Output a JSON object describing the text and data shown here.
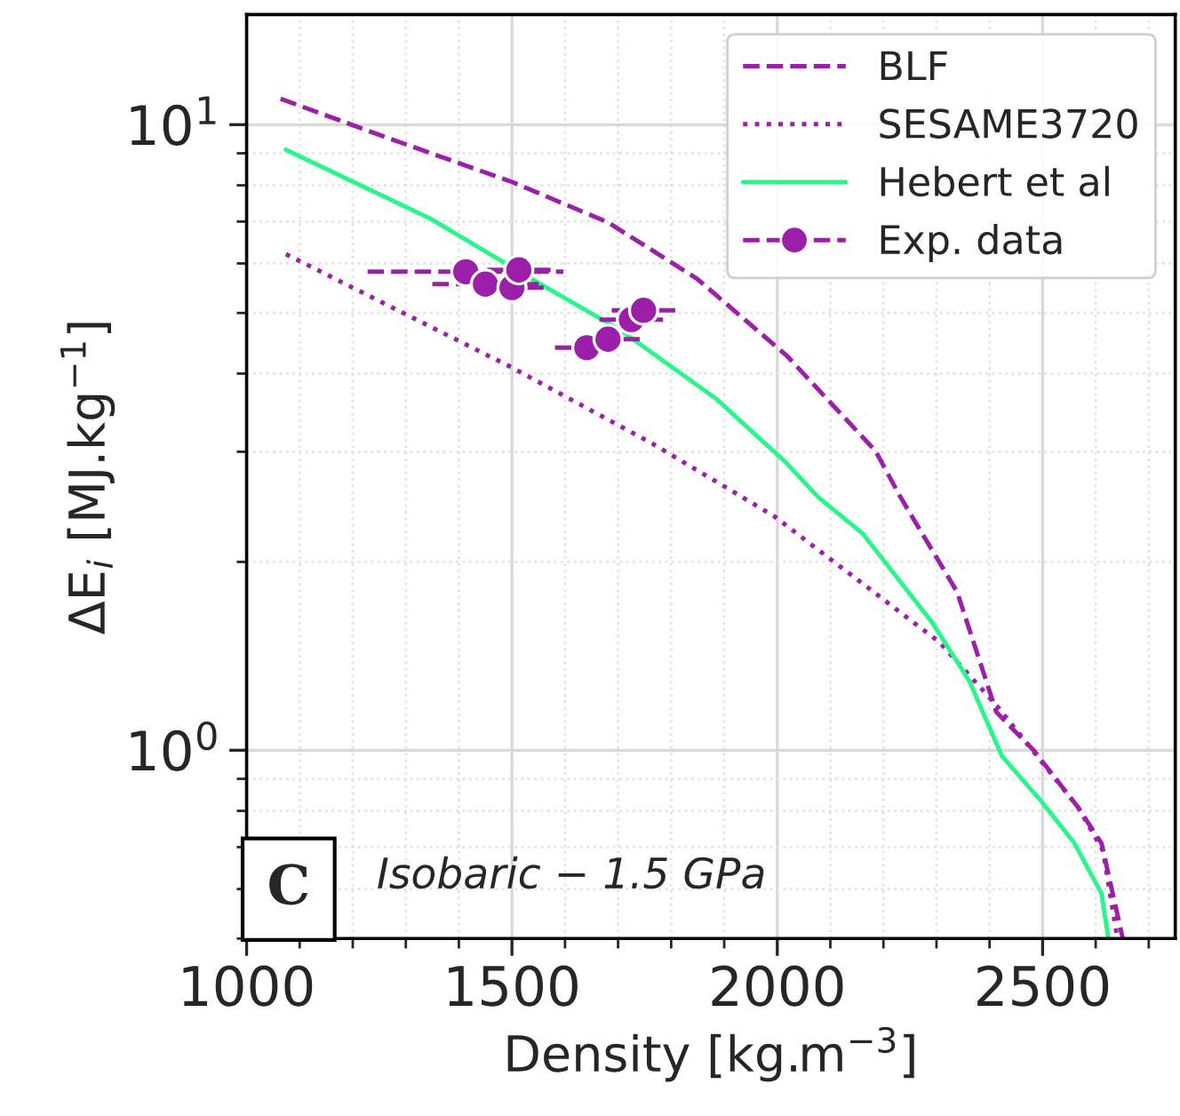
{
  "chart_data": {
    "type": "line",
    "xlabel": "Density [kg.m$^{−3}$]",
    "ylabel": "ΔE$_{i}$ [MJ.kg$^{−1}$]",
    "log": "y",
    "xlim": [
      1000,
      2750
    ],
    "ylim": [
      0.5,
      15
    ],
    "xticks": [
      1000,
      1500,
      2000,
      2500
    ],
    "yticks": [
      {
        "value": 1,
        "label": "10$^{0}$"
      },
      {
        "value": 10,
        "label": "10$^{1}$"
      }
    ],
    "grid": true,
    "legend": "top right",
    "annotations": [
      "C",
      "Isobaric − 1.5 GPa"
    ],
    "series": [
      {
        "name": "BLF",
        "type": "line",
        "line_style": "dashed",
        "color": "#9b1fa8",
        "x": [
          1064,
          1262,
          1500,
          1681,
          1849,
          2017,
          2185,
          2232,
          2339,
          2413,
          2483,
          2567,
          2611,
          2651
        ],
        "values": [
          11.0,
          9.55,
          8.1,
          6.98,
          5.67,
          4.28,
          3.01,
          2.54,
          1.79,
          1.15,
          1.0,
          0.81,
          0.71,
          0.5
        ]
      },
      {
        "name": "SESAME3720",
        "type": "line",
        "line_style": "dotted",
        "color": "#9b1fa8",
        "x": [
          1074,
          1500,
          1765,
          1993,
          2305,
          2413,
          2567,
          2614,
          2641
        ],
        "values": [
          6.21,
          4.09,
          3.09,
          2.37,
          1.49,
          1.18,
          0.81,
          0.69,
          0.5
        ]
      },
      {
        "name": "Hebert et al",
        "type": "line",
        "line_style": "solid",
        "color": "#2cf58c",
        "x": [
          1074,
          1346,
          1537,
          1705,
          1886,
          2017,
          2077,
          2161,
          2292,
          2362,
          2423,
          2497,
          2560,
          2611,
          2624
        ],
        "values": [
          9.12,
          7.08,
          5.67,
          4.69,
          3.64,
          2.88,
          2.54,
          2.22,
          1.6,
          1.29,
          0.98,
          0.83,
          0.71,
          0.59,
          0.5
        ]
      },
      {
        "name": "Exp. data",
        "type": "scatter",
        "marker": "circle",
        "color": "#9b1fa8",
        "x": [
          1413,
          1450,
          1500,
          1513,
          1641,
          1681,
          1725,
          1748
        ],
        "values": [
          5.82,
          5.56,
          5.49,
          5.86,
          4.4,
          4.54,
          4.88,
          5.05
        ],
        "xerrors": [
          [
            1228,
            1597
          ],
          100,
          60,
          60,
          60,
          60,
          60,
          60
        ]
      }
    ]
  }
}
